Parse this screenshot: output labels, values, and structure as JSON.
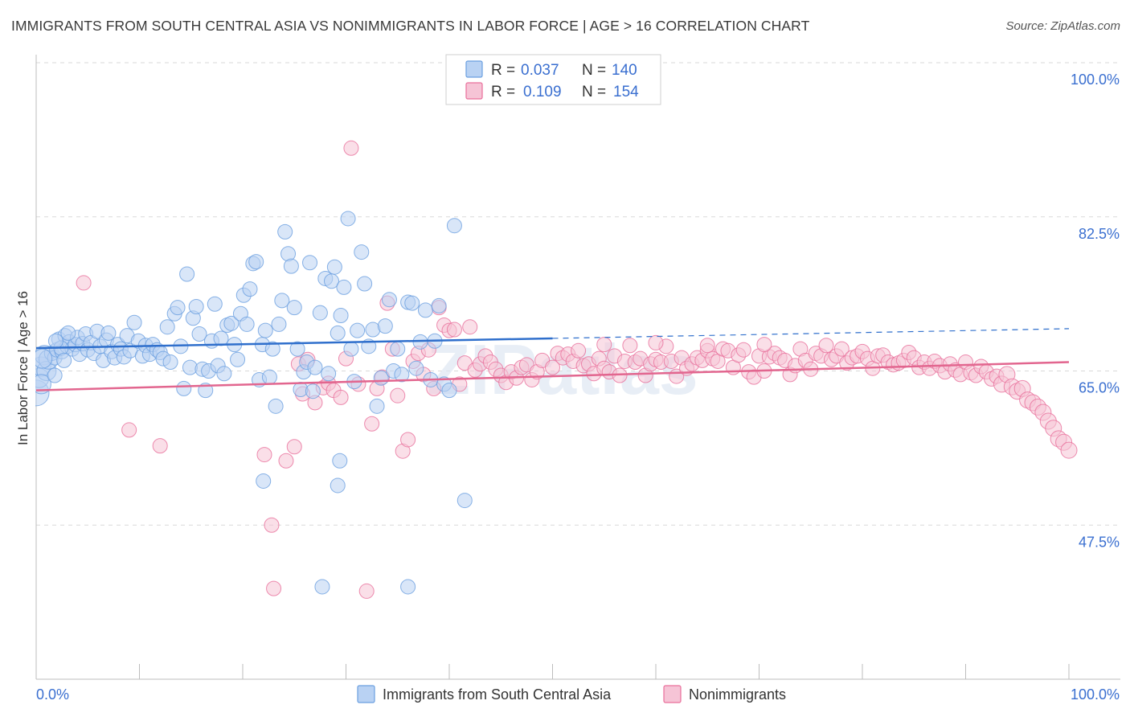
{
  "header": {
    "title": "IMMIGRANTS FROM SOUTH CENTRAL ASIA VS NONIMMIGRANTS IN LABOR FORCE | AGE > 16 CORRELATION CHART",
    "source": "Source: ZipAtlas.com"
  },
  "legend": {
    "r_label": "R =",
    "n_label": "N =",
    "series1_r": "0.037",
    "series1_n": "140",
    "series2_r": "0.109",
    "series2_n": "154"
  },
  "colors": {
    "blue": "#6a9fe0",
    "blue_fill": "#b9d2f3",
    "pink": "#e96f9b",
    "pink_fill": "#f6c4d6",
    "blue_line": "#2f6fcc",
    "pink_line": "#e2668f",
    "tick_text": "#3a6fd0"
  },
  "watermark": "ZIPatlas",
  "chart_data": {
    "type": "scatter",
    "title": "IMMIGRANTS FROM SOUTH CENTRAL ASIA VS NONIMMIGRANTS IN LABOR FORCE | AGE > 16 CORRELATION CHART",
    "xlabel": "",
    "ylabel": "In Labor Force | Age > 16",
    "xlim": [
      0,
      100
    ],
    "ylim": [
      30,
      100
    ],
    "x_tick_labels": [
      "0.0%",
      "100.0%"
    ],
    "y_ticks": [
      47.5,
      65.0,
      82.5,
      100.0
    ],
    "y_tick_labels": [
      "47.5%",
      "65.0%",
      "82.5%",
      "100.0%"
    ],
    "grid": true,
    "legend_position": "top-center",
    "series": [
      {
        "name": "Immigrants from South Central Asia",
        "r": 0.037,
        "n": 140,
        "trend": {
          "x0": 0,
          "y0": 67.6,
          "x1": 50,
          "y1": 68.7,
          "dashed_to_x": 100,
          "dashed_to_y": 69.8
        },
        "points": [
          [
            0,
            62.5
          ],
          [
            0.3,
            64.2
          ],
          [
            0.5,
            65.5
          ],
          [
            0.8,
            66.8
          ],
          [
            1.0,
            65.0
          ],
          [
            1.2,
            66.3
          ],
          [
            1.5,
            67.0
          ],
          [
            1.8,
            66.5
          ],
          [
            2.0,
            67.4
          ],
          [
            2.2,
            68.6
          ],
          [
            2.5,
            67.2
          ],
          [
            2.8,
            69.0
          ],
          [
            3.0,
            67.8
          ],
          [
            3.2,
            68.3
          ],
          [
            3.5,
            67.5
          ],
          [
            3.8,
            68.0
          ],
          [
            4.0,
            68.8
          ],
          [
            4.2,
            66.9
          ],
          [
            4.5,
            68.1
          ],
          [
            4.8,
            69.2
          ],
          [
            5.0,
            67.4
          ],
          [
            5.3,
            68.2
          ],
          [
            5.6,
            67.0
          ],
          [
            5.9,
            69.5
          ],
          [
            6.2,
            67.8
          ],
          [
            6.5,
            66.2
          ],
          [
            6.8,
            68.5
          ],
          [
            7.0,
            69.3
          ],
          [
            7.3,
            67.2
          ],
          [
            7.6,
            66.5
          ],
          [
            7.9,
            68.0
          ],
          [
            8.2,
            67.5
          ],
          [
            8.5,
            66.6
          ],
          [
            8.8,
            69.0
          ],
          [
            9.1,
            67.3
          ],
          [
            9.5,
            70.5
          ],
          [
            9.9,
            68.4
          ],
          [
            10.3,
            66.7
          ],
          [
            10.6,
            67.9
          ],
          [
            11.0,
            66.9
          ],
          [
            11.3,
            68.0
          ],
          [
            11.7,
            67.4
          ],
          [
            12.0,
            67.1
          ],
          [
            12.3,
            66.4
          ],
          [
            12.7,
            70.0
          ],
          [
            13.0,
            66.0
          ],
          [
            13.4,
            71.5
          ],
          [
            13.7,
            72.2
          ],
          [
            14.0,
            67.8
          ],
          [
            14.3,
            63.0
          ],
          [
            14.6,
            76.0
          ],
          [
            14.9,
            65.4
          ],
          [
            15.2,
            71.0
          ],
          [
            15.5,
            72.3
          ],
          [
            15.8,
            69.2
          ],
          [
            16.1,
            65.2
          ],
          [
            16.4,
            62.8
          ],
          [
            16.7,
            65.0
          ],
          [
            17.0,
            68.4
          ],
          [
            17.3,
            72.6
          ],
          [
            17.6,
            65.6
          ],
          [
            17.9,
            68.7
          ],
          [
            18.2,
            64.7
          ],
          [
            18.5,
            70.2
          ],
          [
            18.9,
            70.4
          ],
          [
            19.2,
            68.0
          ],
          [
            19.5,
            66.3
          ],
          [
            19.8,
            71.5
          ],
          [
            20.1,
            73.6
          ],
          [
            20.4,
            70.3
          ],
          [
            20.7,
            74.3
          ],
          [
            21.0,
            77.2
          ],
          [
            21.3,
            77.4
          ],
          [
            21.6,
            64.0
          ],
          [
            21.9,
            68.0
          ],
          [
            22.2,
            69.6
          ],
          [
            22.6,
            64.3
          ],
          [
            22.9,
            67.5
          ],
          [
            23.2,
            61.0
          ],
          [
            23.5,
            70.3
          ],
          [
            23.8,
            73.0
          ],
          [
            24.1,
            80.8
          ],
          [
            24.4,
            78.3
          ],
          [
            24.7,
            76.9
          ],
          [
            25.0,
            72.2
          ],
          [
            25.3,
            67.5
          ],
          [
            25.6,
            62.9
          ],
          [
            25.9,
            64.9
          ],
          [
            26.2,
            66.0
          ],
          [
            26.5,
            77.3
          ],
          [
            26.8,
            62.7
          ],
          [
            27.0,
            65.4
          ],
          [
            27.5,
            71.6
          ],
          [
            28.0,
            75.5
          ],
          [
            28.3,
            64.7
          ],
          [
            28.6,
            75.2
          ],
          [
            28.9,
            76.8
          ],
          [
            29.2,
            69.3
          ],
          [
            29.5,
            71.3
          ],
          [
            29.8,
            74.5
          ],
          [
            30.2,
            82.3
          ],
          [
            30.5,
            67.5
          ],
          [
            30.8,
            63.8
          ],
          [
            31.1,
            69.6
          ],
          [
            31.5,
            78.5
          ],
          [
            31.8,
            74.9
          ],
          [
            32.2,
            67.8
          ],
          [
            32.6,
            69.7
          ],
          [
            33.0,
            61.0
          ],
          [
            33.4,
            64.2
          ],
          [
            33.8,
            70.1
          ],
          [
            34.2,
            73.1
          ],
          [
            34.6,
            65.0
          ],
          [
            35.0,
            67.5
          ],
          [
            35.4,
            64.6
          ],
          [
            36.0,
            72.8
          ],
          [
            36.4,
            72.7
          ],
          [
            36.8,
            65.3
          ],
          [
            37.2,
            68.3
          ],
          [
            37.7,
            71.9
          ],
          [
            38.2,
            64.0
          ],
          [
            38.6,
            68.4
          ],
          [
            39.0,
            72.4
          ],
          [
            39.5,
            63.5
          ],
          [
            40.0,
            62.8
          ],
          [
            40.5,
            81.5
          ],
          [
            41.5,
            50.3
          ],
          [
            27.7,
            40.5
          ],
          [
            36.0,
            40.5
          ],
          [
            29.4,
            54.8
          ],
          [
            29.2,
            52.0
          ],
          [
            22.0,
            52.5
          ],
          [
            0.5,
            63.5
          ],
          [
            1.8,
            64.5
          ],
          [
            2.4,
            67.6
          ],
          [
            0.6,
            66.4
          ],
          [
            1.9,
            68.4
          ],
          [
            2.7,
            66.2
          ],
          [
            3.1,
            69.3
          ]
        ]
      },
      {
        "name": "Nonimmigrants",
        "r": 0.109,
        "n": 154,
        "trend": {
          "x0": 0,
          "y0": 62.8,
          "x1": 100,
          "y1": 66.0
        },
        "points": [
          [
            4.6,
            75.0
          ],
          [
            9.0,
            58.3
          ],
          [
            12.0,
            56.5
          ],
          [
            22.1,
            55.5
          ],
          [
            22.8,
            47.5
          ],
          [
            23.0,
            40.3
          ],
          [
            24.2,
            54.8
          ],
          [
            25.0,
            56.4
          ],
          [
            25.4,
            65.8
          ],
          [
            25.8,
            62.4
          ],
          [
            26.3,
            66.3
          ],
          [
            27.0,
            61.4
          ],
          [
            27.8,
            63.1
          ],
          [
            28.3,
            63.6
          ],
          [
            28.8,
            62.8
          ],
          [
            29.5,
            62.0
          ],
          [
            30.0,
            66.4
          ],
          [
            30.5,
            90.3
          ],
          [
            31.2,
            63.5
          ],
          [
            32.0,
            40.0
          ],
          [
            32.5,
            59.0
          ],
          [
            33.0,
            63.0
          ],
          [
            33.5,
            64.3
          ],
          [
            34.0,
            72.7
          ],
          [
            34.5,
            67.5
          ],
          [
            35.0,
            62.2
          ],
          [
            35.5,
            55.9
          ],
          [
            36.0,
            57.2
          ],
          [
            36.5,
            66.1
          ],
          [
            37.0,
            67.0
          ],
          [
            37.5,
            64.6
          ],
          [
            38.0,
            67.4
          ],
          [
            38.5,
            63.0
          ],
          [
            39.0,
            72.2
          ],
          [
            39.5,
            70.2
          ],
          [
            40.0,
            69.6
          ],
          [
            40.5,
            69.7
          ],
          [
            41.0,
            63.5
          ],
          [
            41.5,
            65.9
          ],
          [
            42.0,
            70.0
          ],
          [
            42.5,
            65.1
          ],
          [
            43.0,
            65.8
          ],
          [
            43.5,
            66.7
          ],
          [
            44.0,
            66.0
          ],
          [
            44.5,
            65.2
          ],
          [
            45.0,
            64.5
          ],
          [
            45.5,
            63.7
          ],
          [
            46.0,
            64.9
          ],
          [
            46.5,
            64.2
          ],
          [
            47.0,
            65.4
          ],
          [
            47.5,
            65.7
          ],
          [
            48.0,
            64.0
          ],
          [
            48.5,
            64.9
          ],
          [
            49.0,
            66.2
          ],
          [
            50.0,
            65.4
          ],
          [
            50.5,
            67.0
          ],
          [
            51.0,
            66.5
          ],
          [
            51.5,
            66.9
          ],
          [
            52.0,
            66.1
          ],
          [
            52.5,
            67.3
          ],
          [
            53.0,
            65.6
          ],
          [
            53.5,
            65.8
          ],
          [
            54.0,
            64.7
          ],
          [
            54.5,
            66.4
          ],
          [
            55.0,
            65.3
          ],
          [
            55.5,
            64.9
          ],
          [
            56.0,
            66.7
          ],
          [
            56.5,
            64.5
          ],
          [
            57.0,
            66.1
          ],
          [
            57.5,
            67.9
          ],
          [
            58.0,
            66.0
          ],
          [
            58.5,
            66.4
          ],
          [
            59.0,
            64.5
          ],
          [
            59.5,
            65.8
          ],
          [
            60.0,
            66.3
          ],
          [
            60.5,
            66.0
          ],
          [
            61.0,
            67.8
          ],
          [
            61.5,
            66.1
          ],
          [
            62.0,
            64.4
          ],
          [
            62.5,
            66.5
          ],
          [
            63.0,
            65.3
          ],
          [
            63.5,
            65.8
          ],
          [
            64.0,
            66.5
          ],
          [
            64.5,
            66.2
          ],
          [
            65.0,
            67.3
          ],
          [
            65.5,
            66.4
          ],
          [
            66.0,
            66.1
          ],
          [
            66.5,
            67.5
          ],
          [
            67.0,
            67.3
          ],
          [
            67.5,
            65.4
          ],
          [
            68.0,
            66.8
          ],
          [
            68.5,
            67.4
          ],
          [
            69.0,
            64.9
          ],
          [
            69.5,
            64.3
          ],
          [
            70.0,
            66.7
          ],
          [
            70.5,
            65.0
          ],
          [
            71.0,
            66.6
          ],
          [
            71.5,
            67.0
          ],
          [
            72.0,
            66.5
          ],
          [
            72.5,
            66.2
          ],
          [
            73.0,
            64.6
          ],
          [
            73.5,
            65.6
          ],
          [
            74.0,
            67.5
          ],
          [
            74.5,
            66.2
          ],
          [
            75.0,
            65.2
          ],
          [
            75.5,
            67.0
          ],
          [
            76.0,
            66.7
          ],
          [
            76.5,
            67.9
          ],
          [
            77.0,
            66.3
          ],
          [
            77.5,
            66.7
          ],
          [
            78.0,
            67.5
          ],
          [
            78.5,
            65.9
          ],
          [
            79.0,
            66.5
          ],
          [
            79.5,
            66.7
          ],
          [
            80.0,
            67.2
          ],
          [
            80.5,
            66.4
          ],
          [
            81.0,
            65.3
          ],
          [
            81.5,
            66.7
          ],
          [
            82.0,
            66.8
          ],
          [
            82.5,
            66.0
          ],
          [
            83.0,
            65.7
          ],
          [
            83.5,
            65.9
          ],
          [
            84.0,
            66.2
          ],
          [
            84.5,
            67.1
          ],
          [
            85.0,
            66.5
          ],
          [
            85.5,
            65.4
          ],
          [
            86.0,
            66.0
          ],
          [
            86.5,
            65.3
          ],
          [
            87.0,
            66.1
          ],
          [
            87.5,
            65.6
          ],
          [
            88.0,
            64.9
          ],
          [
            88.5,
            65.8
          ],
          [
            89.0,
            65.1
          ],
          [
            89.5,
            64.6
          ],
          [
            90.0,
            66.0
          ],
          [
            90.5,
            64.8
          ],
          [
            91.0,
            64.5
          ],
          [
            91.5,
            65.5
          ],
          [
            92.0,
            64.9
          ],
          [
            92.5,
            64.1
          ],
          [
            93.0,
            64.4
          ],
          [
            93.5,
            63.5
          ],
          [
            94.0,
            64.6
          ],
          [
            94.5,
            63.2
          ],
          [
            95.0,
            62.7
          ],
          [
            95.5,
            63.0
          ],
          [
            96.0,
            61.7
          ],
          [
            96.5,
            61.4
          ],
          [
            97.0,
            60.9
          ],
          [
            97.5,
            60.3
          ],
          [
            98.0,
            59.3
          ],
          [
            98.5,
            58.5
          ],
          [
            99.0,
            57.3
          ],
          [
            99.5,
            56.9
          ],
          [
            100.0,
            56.0
          ],
          [
            70.5,
            68.0
          ],
          [
            60.0,
            68.2
          ],
          [
            65.0,
            67.9
          ],
          [
            55.0,
            68.0
          ]
        ]
      }
    ]
  }
}
